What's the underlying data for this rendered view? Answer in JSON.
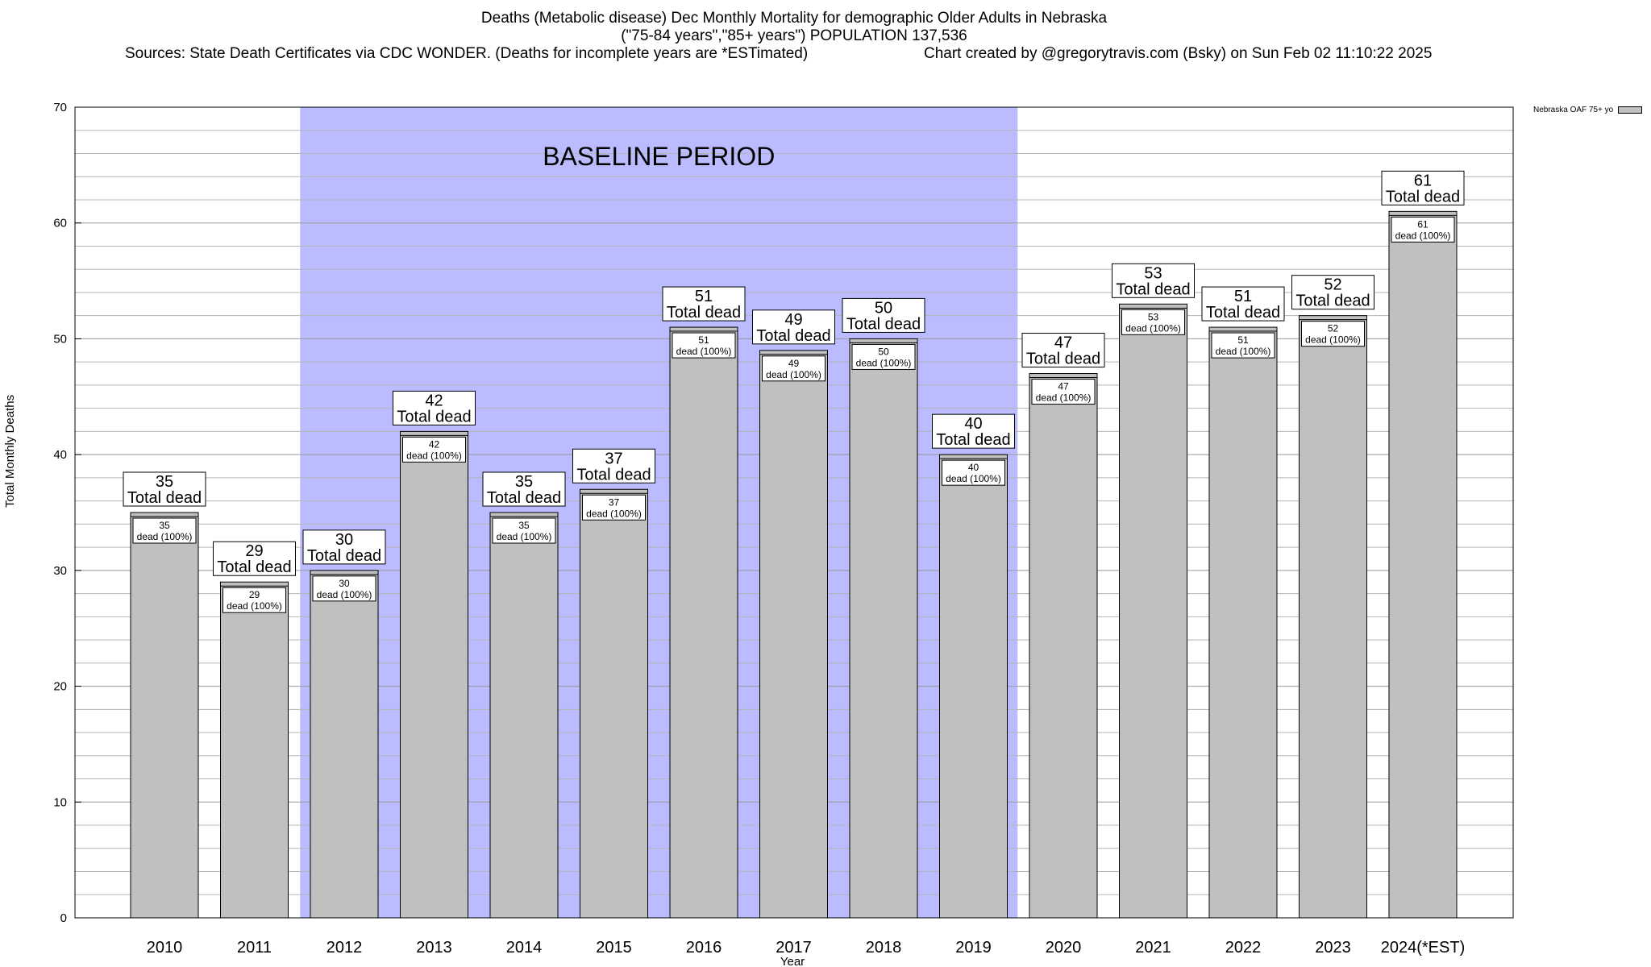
{
  "chart_data": {
    "type": "bar",
    "title": "Deaths (Metabolic disease) Dec Monthly Mortality for demographic Older Adults in Nebraska",
    "subtitle": "(\"75-84 years\",\"85+ years\") POPULATION 137,536",
    "sources": "Sources: State Death Certificates via CDC WONDER. (Deaths for incomplete years are *ESTimated)",
    "credit": "Chart created by @gregorytravis.com (Bsky) on Sun Feb 02 11:10:22 2025",
    "xlabel": "Year",
    "ylabel": "Total Monthly Deaths",
    "ylim": [
      0,
      70
    ],
    "yticks": [
      0,
      10,
      20,
      30,
      40,
      50,
      60,
      70
    ],
    "grid": true,
    "legend_position": "top-right",
    "categories": [
      "2010",
      "2011",
      "2012",
      "2013",
      "2014",
      "2015",
      "2016",
      "2017",
      "2018",
      "2019",
      "2020",
      "2021",
      "2022",
      "2023",
      "2024(*EST)"
    ],
    "series": [
      {
        "name": "Nebraska OAF 75+ yo",
        "color": "#c0c0c0",
        "values": [
          35,
          29,
          30,
          42,
          35,
          37,
          51,
          49,
          50,
          40,
          47,
          53,
          51,
          52,
          61
        ]
      }
    ],
    "label_top_text": "Total dead",
    "label_inner_text": "dead (100%)",
    "baseline": {
      "label": "BASELINE PERIOD",
      "start": "2012",
      "end": "2019",
      "color": "#bbbbff"
    }
  }
}
